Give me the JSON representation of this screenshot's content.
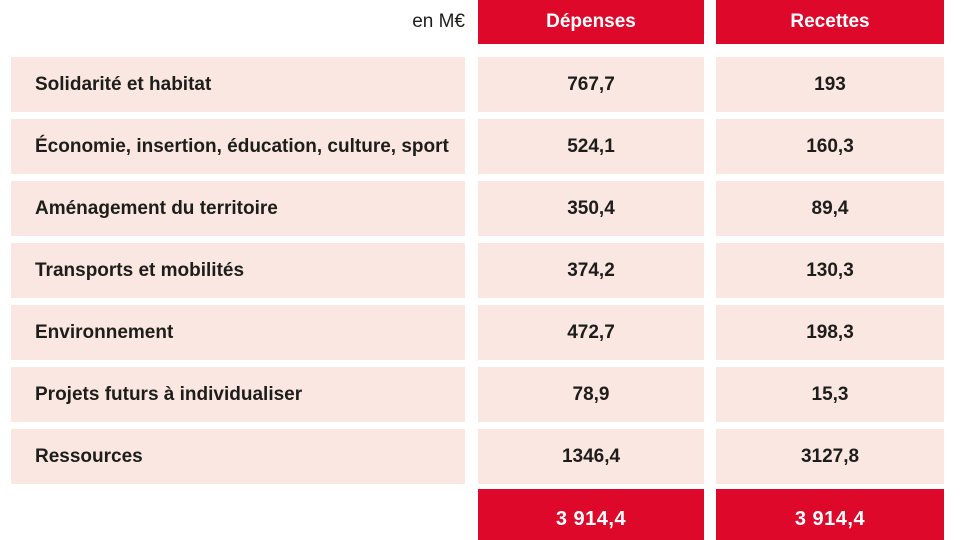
{
  "unit_label": "en M€",
  "colors": {
    "accent_red": "#de082b",
    "row_pink": "#fae7e1",
    "text_dark": "#1d1d1b",
    "background": "#ffffff",
    "header_text": "#ffffff"
  },
  "table": {
    "columns": [
      {
        "key": "depenses",
        "label": "Dépenses"
      },
      {
        "key": "recettes",
        "label": "Recettes"
      }
    ],
    "rows": [
      {
        "label": "Solidarité et habitat",
        "depenses": "767,7",
        "recettes": "193"
      },
      {
        "label": "Économie, insertion, éducation, culture, sport",
        "depenses": "524,1",
        "recettes": "160,3"
      },
      {
        "label": "Aménagement du territoire",
        "depenses": "350,4",
        "recettes": "89,4"
      },
      {
        "label": "Transports et mobilités",
        "depenses": "374,2",
        "recettes": "130,3"
      },
      {
        "label": "Environnement",
        "depenses": "472,7",
        "recettes": "198,3"
      },
      {
        "label": "Projets futurs à individualiser",
        "depenses": "78,9",
        "recettes": "15,3"
      },
      {
        "label": "Ressources",
        "depenses": "1346,4",
        "recettes": "3127,8"
      }
    ],
    "total": {
      "depenses": "3 914,4",
      "recettes": "3 914,4"
    }
  },
  "chart_data": {
    "type": "table",
    "title": "",
    "unit": "en M€",
    "categories": [
      "Solidarité et habitat",
      "Économie, insertion, éducation, culture, sport",
      "Aménagement du territoire",
      "Transports et mobilités",
      "Environnement",
      "Projets futurs à individualiser",
      "Ressources"
    ],
    "series": [
      {
        "name": "Dépenses",
        "values": [
          767.7,
          524.1,
          350.4,
          374.2,
          472.7,
          78.9,
          1346.4
        ],
        "total": 3914.4
      },
      {
        "name": "Recettes",
        "values": [
          193,
          160.3,
          89.4,
          130.3,
          198.3,
          15.3,
          3127.8
        ],
        "total": 3914.4
      }
    ],
    "legend_position": "top",
    "grid": false
  }
}
